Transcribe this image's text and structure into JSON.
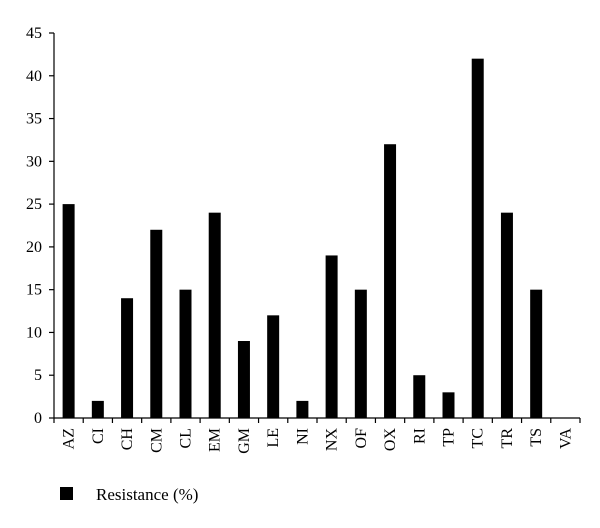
{
  "chart_data": {
    "type": "bar",
    "title": "",
    "xlabel": "",
    "ylabel": "",
    "categories": [
      "AZ",
      "CI",
      "CH",
      "CM",
      "CL",
      "EM",
      "GM",
      "LE",
      "NI",
      "NX",
      "OF",
      "OX",
      "RI",
      "TP",
      "TC",
      "TR",
      "TS",
      "VA"
    ],
    "series": [
      {
        "name": "Resistance (%)",
        "values": [
          25,
          2,
          14,
          22,
          15,
          24,
          9,
          12,
          2,
          19,
          15,
          32,
          5,
          3,
          42,
          24,
          15,
          0
        ],
        "color": "#000000"
      }
    ],
    "ylim": [
      0,
      45
    ],
    "yticks": [
      0,
      5,
      10,
      15,
      20,
      25,
      30,
      35,
      40,
      45
    ],
    "x_tick_rotation": "vertical",
    "grid": false,
    "legend": {
      "position": "bottom-left",
      "entries": [
        "Resistance (%)"
      ]
    }
  }
}
